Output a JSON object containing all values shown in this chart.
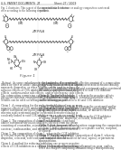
{
  "background_color": "#ffffff",
  "header_left": "U.S. PATENT DOCUMENTS",
  "header_center": "27",
  "header_right": "Sheet 27 / 2009",
  "top_left_text": [
    "Fig. 2 illustrates. This aspect of the inven-tion can be shown",
    "after according to the following structure:"
  ],
  "top_right_text": [
    "compound linked structure or analogy composition carotenoid",
    "products."
  ],
  "struct1_label": "ZRPNA",
  "struct2_label": "ZRPNA",
  "struct3_label": "Figure 1",
  "col_divider": 0.5,
  "lw_struct": 0.35,
  "col_left": [
    "Abstract. As some embodiments, the principles of a carotenoid",
    "linked by ester or amide linkage to a COX inhibitor such as aspirin,",
    "naproxen, ibuprofen, or other NSAIDs can be used to reduce the",
    "negative effects of COX inhibitors such as gastrointestinal side",
    "effects, cardiovascular side effects, and/or ulcerogenic side effects.",
    "The composition comprising carotenoids and/or carotenoid",
    "derivatives/analogs conjugated to COX inhibitors comprising",
    "NSAIDs can be used according to the following aspects.",
    "",
    "Claim 1. A composition for the reduction/inhibition of one or more",
    "negative effects of COX inhibitors comprising: (a) a carotenoid",
    "and/or carotenoid derivative/analog; and (b) a COX inhibitor;",
    "wherein said carotenoid and/or carotenoid derivative/analog is",
    "covalently linked to said COX inhibitor via an ester or amide bond.",
    "",
    "Claim 2. The composition of claim 1, wherein the carotenoid",
    "and/or carotenoid derivative/analog is selected from the group",
    "consisting of zeaxanthin, astaxanthin, lutein, lycopene, beta-",
    "carotene, canthaxanthin, and mixtures and derivatives thereof.",
    "",
    "Claim 3. The composition of claim 1, wherein the COX inhibitor",
    "is selected from the group consisting of aspirin, naproxen,",
    "ibuprofen, celecoxib, rofecoxib, and mixtures thereof.",
    "",
    "Claim 4. A method for reducing/inhibiting one or more negative",
    "effects of COX inhibitors in a subject comprising administering"
  ],
  "col_right": [
    "to said subject a therapeutically effective amount of a composition",
    "comprising: (a) a carotenoid and/or carotenoid derivative/analog;",
    "and (b) a COX inhibitor; wherein said carotenoid and/or carotenoid",
    "derivative/analog is covalently linked to said COX inhibitor.",
    "",
    "Claim 5. The method of claim 4, wherein the negative effects",
    "are gastrointestinal side effects, cardiovascular side effects,",
    "and/or ulcerogenic side effects of said COX inhibitor.",
    "",
    "Claim 6. The method of claim 4, wherein the carotenoid and/or",
    "carotenoid derivative/analog is zeaxanthin, astaxanthin, lutein,",
    "lycopene, beta-carotene, canthaxanthin, or mixtures thereof.",
    "",
    "Claim 7. The method of claim 4, wherein the COX inhibitor",
    "is aspirin, naproxen, ibuprofen, celecoxib, rofecoxib, or",
    "mixtures thereof.",
    "",
    "Claim 8. A pharmaceutical composition comprising the composition",
    "of claim 1 and a pharmaceutically acceptable carrier, excipient,",
    "or diluent.",
    "",
    "Claim 9. The pharmaceutical composition of claim 8, wherein",
    "said composition is formulated for oral, topical, or parenteral",
    "administration.",
    "",
    "Claim 10. A method for treating inflammation, pain, and/or",
    "fever in a subject comprising administering a therapeutically"
  ]
}
